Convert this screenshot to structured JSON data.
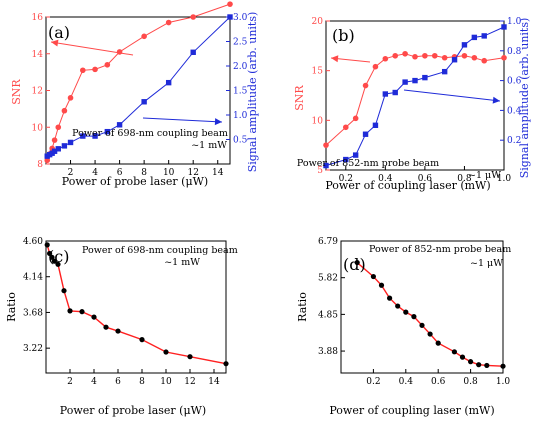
{
  "chart_data": [
    {
      "panel": "a",
      "type": "line",
      "panel_label": "(a)",
      "xlabel": "Power of probe laser (μW)",
      "ylabel_left": "SNR",
      "ylabel_right": "Signal amplitude (arb. units)",
      "annotation": [
        "Power of 698-nm coupling beam",
        "~1 mW"
      ],
      "xlim": [
        0,
        15
      ],
      "ylim_left": [
        8,
        16
      ],
      "ylim_right": [
        0,
        3
      ],
      "xticks": [
        "2",
        "4",
        "6",
        "8",
        "10",
        "12",
        "14"
      ],
      "yticks_left": [
        "8",
        "10",
        "12",
        "14",
        "16"
      ],
      "yticks_right": [
        "0.5",
        "1.0",
        "1.5",
        "2.0",
        "2.5",
        "3.0"
      ],
      "colors": {
        "left": "#ff4a4a",
        "right": "#1f2bd8"
      },
      "series": [
        {
          "axis": "left",
          "marker": "circle",
          "x": [
            0.1,
            0.3,
            0.5,
            0.7,
            1.0,
            1.5,
            2.0,
            3.0,
            4.0,
            5.0,
            6.0,
            8.0,
            10.0,
            12.0,
            15.0
          ],
          "y": [
            8.2,
            8.55,
            8.85,
            9.3,
            10.0,
            10.9,
            11.6,
            13.1,
            13.15,
            13.4,
            14.1,
            14.95,
            15.7,
            16.0,
            16.7
          ]
        },
        {
          "axis": "right",
          "marker": "square",
          "x": [
            0.1,
            0.3,
            0.5,
            0.7,
            1.0,
            1.5,
            2.0,
            3.0,
            4.0,
            5.0,
            6.0,
            8.0,
            10.0,
            12.0,
            15.0
          ],
          "y": [
            0.16,
            0.19,
            0.22,
            0.26,
            0.31,
            0.37,
            0.44,
            0.57,
            0.57,
            0.66,
            0.8,
            1.27,
            1.66,
            2.28,
            3.0
          ]
        }
      ]
    },
    {
      "panel": "b",
      "type": "line",
      "panel_label": "(b)",
      "xlabel": "Power of coupling laser (mW)",
      "ylabel_left": "SNR",
      "ylabel_right": "Signal amplitude (arb. units)",
      "annotation": [
        "Power of 852-nm probe beam",
        "~1 μW"
      ],
      "xlim": [
        0.1,
        1.0
      ],
      "ylim_left": [
        5,
        20
      ],
      "ylim_right": [
        0,
        1.0
      ],
      "xticks": [
        "0.2",
        "0.4",
        "0.6",
        "0.8",
        "1.0"
      ],
      "yticks_left": [
        "5",
        "10",
        "15",
        "20"
      ],
      "yticks_right": [
        "0.2",
        "0.4",
        "0.6",
        "0.8",
        "1.0"
      ],
      "colors": {
        "left": "#ff4a4a",
        "right": "#1f2bd8"
      },
      "series": [
        {
          "axis": "left",
          "marker": "circle",
          "x": [
            0.1,
            0.2,
            0.25,
            0.3,
            0.35,
            0.4,
            0.45,
            0.5,
            0.55,
            0.6,
            0.65,
            0.7,
            0.75,
            0.8,
            0.85,
            0.9,
            1.0
          ],
          "y": [
            7.5,
            9.3,
            10.2,
            13.5,
            15.4,
            16.2,
            16.5,
            16.7,
            16.4,
            16.5,
            16.5,
            16.3,
            16.4,
            16.5,
            16.3,
            16.0,
            16.3
          ]
        },
        {
          "axis": "right",
          "marker": "square",
          "x": [
            0.1,
            0.2,
            0.25,
            0.3,
            0.35,
            0.4,
            0.45,
            0.5,
            0.55,
            0.6,
            0.7,
            0.75,
            0.8,
            0.85,
            0.9,
            1.0
          ],
          "y": [
            0.03,
            0.07,
            0.1,
            0.24,
            0.3,
            0.51,
            0.52,
            0.59,
            0.6,
            0.62,
            0.66,
            0.74,
            0.84,
            0.89,
            0.9,
            0.96
          ]
        }
      ]
    },
    {
      "panel": "c",
      "type": "line",
      "panel_label": "(c)",
      "xlabel": "Power of probe laser (μW)",
      "ylabel": "Ratio",
      "annotation": [
        "Power of 698-nm coupling beam",
        "~1 mW"
      ],
      "xlim": [
        0,
        15
      ],
      "ylim": [
        2.9,
        4.6
      ],
      "xticks": [
        "2",
        "4",
        "6",
        "8",
        "10",
        "12",
        "14"
      ],
      "yticks": [
        "3.22",
        "3.68",
        "4.14",
        "4.60"
      ],
      "colors": {
        "line": "#ff2020",
        "marker": "#000000"
      },
      "series": [
        {
          "x": [
            0.1,
            0.3,
            0.5,
            0.7,
            1.0,
            1.5,
            2.0,
            3.0,
            4.0,
            5.0,
            6.0,
            8.0,
            10.0,
            12.0,
            15.0
          ],
          "y": [
            4.55,
            4.44,
            4.39,
            4.34,
            4.3,
            3.96,
            3.7,
            3.69,
            3.62,
            3.49,
            3.44,
            3.33,
            3.17,
            3.11,
            3.02
          ]
        }
      ]
    },
    {
      "panel": "d",
      "type": "line",
      "panel_label": "(d)",
      "xlabel": "Power of coupling laser (mW)",
      "ylabel": "Ratio",
      "annotation": [
        "Power of 852-nm probe beam",
        "~1 μW"
      ],
      "xlim": [
        0,
        1.0
      ],
      "ylim": [
        3.3,
        6.79
      ],
      "xticks": [
        "0.2",
        "0.4",
        "0.6",
        "0.8",
        "1.0"
      ],
      "yticks": [
        "3.88",
        "4.85",
        "5.82",
        "6.79"
      ],
      "colors": {
        "line": "#ff2020",
        "marker": "#000000"
      },
      "series": [
        {
          "x": [
            0.1,
            0.2,
            0.25,
            0.3,
            0.35,
            0.4,
            0.45,
            0.5,
            0.55,
            0.6,
            0.7,
            0.75,
            0.8,
            0.85,
            0.9,
            1.0
          ],
          "y": [
            6.22,
            5.85,
            5.62,
            5.28,
            5.07,
            4.91,
            4.79,
            4.56,
            4.33,
            4.09,
            3.86,
            3.72,
            3.6,
            3.52,
            3.5,
            3.48
          ]
        }
      ]
    }
  ]
}
